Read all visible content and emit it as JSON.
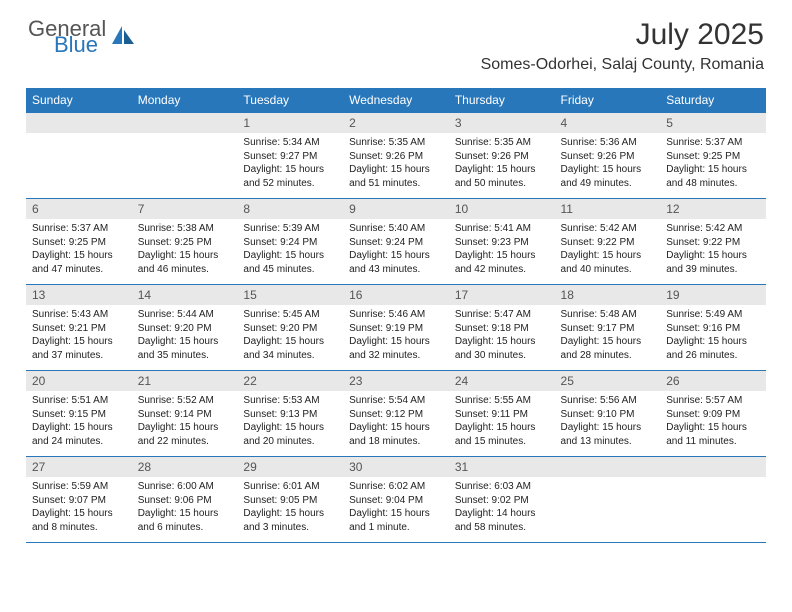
{
  "logo": {
    "text1": "General",
    "text2": "Blue"
  },
  "title": "July 2025",
  "location": "Somes-Odorhei, Salaj County, Romania",
  "colors": {
    "header_bg": "#2877bb",
    "date_bg": "#e8e8e8",
    "border": "#2877bb",
    "text": "#222222"
  },
  "dayHeaders": [
    "Sunday",
    "Monday",
    "Tuesday",
    "Wednesday",
    "Thursday",
    "Friday",
    "Saturday"
  ],
  "weeks": [
    [
      {
        "date": "",
        "lines": []
      },
      {
        "date": "",
        "lines": []
      },
      {
        "date": "1",
        "lines": [
          "Sunrise: 5:34 AM",
          "Sunset: 9:27 PM",
          "Daylight: 15 hours",
          "and 52 minutes."
        ]
      },
      {
        "date": "2",
        "lines": [
          "Sunrise: 5:35 AM",
          "Sunset: 9:26 PM",
          "Daylight: 15 hours",
          "and 51 minutes."
        ]
      },
      {
        "date": "3",
        "lines": [
          "Sunrise: 5:35 AM",
          "Sunset: 9:26 PM",
          "Daylight: 15 hours",
          "and 50 minutes."
        ]
      },
      {
        "date": "4",
        "lines": [
          "Sunrise: 5:36 AM",
          "Sunset: 9:26 PM",
          "Daylight: 15 hours",
          "and 49 minutes."
        ]
      },
      {
        "date": "5",
        "lines": [
          "Sunrise: 5:37 AM",
          "Sunset: 9:25 PM",
          "Daylight: 15 hours",
          "and 48 minutes."
        ]
      }
    ],
    [
      {
        "date": "6",
        "lines": [
          "Sunrise: 5:37 AM",
          "Sunset: 9:25 PM",
          "Daylight: 15 hours",
          "and 47 minutes."
        ]
      },
      {
        "date": "7",
        "lines": [
          "Sunrise: 5:38 AM",
          "Sunset: 9:25 PM",
          "Daylight: 15 hours",
          "and 46 minutes."
        ]
      },
      {
        "date": "8",
        "lines": [
          "Sunrise: 5:39 AM",
          "Sunset: 9:24 PM",
          "Daylight: 15 hours",
          "and 45 minutes."
        ]
      },
      {
        "date": "9",
        "lines": [
          "Sunrise: 5:40 AM",
          "Sunset: 9:24 PM",
          "Daylight: 15 hours",
          "and 43 minutes."
        ]
      },
      {
        "date": "10",
        "lines": [
          "Sunrise: 5:41 AM",
          "Sunset: 9:23 PM",
          "Daylight: 15 hours",
          "and 42 minutes."
        ]
      },
      {
        "date": "11",
        "lines": [
          "Sunrise: 5:42 AM",
          "Sunset: 9:22 PM",
          "Daylight: 15 hours",
          "and 40 minutes."
        ]
      },
      {
        "date": "12",
        "lines": [
          "Sunrise: 5:42 AM",
          "Sunset: 9:22 PM",
          "Daylight: 15 hours",
          "and 39 minutes."
        ]
      }
    ],
    [
      {
        "date": "13",
        "lines": [
          "Sunrise: 5:43 AM",
          "Sunset: 9:21 PM",
          "Daylight: 15 hours",
          "and 37 minutes."
        ]
      },
      {
        "date": "14",
        "lines": [
          "Sunrise: 5:44 AM",
          "Sunset: 9:20 PM",
          "Daylight: 15 hours",
          "and 35 minutes."
        ]
      },
      {
        "date": "15",
        "lines": [
          "Sunrise: 5:45 AM",
          "Sunset: 9:20 PM",
          "Daylight: 15 hours",
          "and 34 minutes."
        ]
      },
      {
        "date": "16",
        "lines": [
          "Sunrise: 5:46 AM",
          "Sunset: 9:19 PM",
          "Daylight: 15 hours",
          "and 32 minutes."
        ]
      },
      {
        "date": "17",
        "lines": [
          "Sunrise: 5:47 AM",
          "Sunset: 9:18 PM",
          "Daylight: 15 hours",
          "and 30 minutes."
        ]
      },
      {
        "date": "18",
        "lines": [
          "Sunrise: 5:48 AM",
          "Sunset: 9:17 PM",
          "Daylight: 15 hours",
          "and 28 minutes."
        ]
      },
      {
        "date": "19",
        "lines": [
          "Sunrise: 5:49 AM",
          "Sunset: 9:16 PM",
          "Daylight: 15 hours",
          "and 26 minutes."
        ]
      }
    ],
    [
      {
        "date": "20",
        "lines": [
          "Sunrise: 5:51 AM",
          "Sunset: 9:15 PM",
          "Daylight: 15 hours",
          "and 24 minutes."
        ]
      },
      {
        "date": "21",
        "lines": [
          "Sunrise: 5:52 AM",
          "Sunset: 9:14 PM",
          "Daylight: 15 hours",
          "and 22 minutes."
        ]
      },
      {
        "date": "22",
        "lines": [
          "Sunrise: 5:53 AM",
          "Sunset: 9:13 PM",
          "Daylight: 15 hours",
          "and 20 minutes."
        ]
      },
      {
        "date": "23",
        "lines": [
          "Sunrise: 5:54 AM",
          "Sunset: 9:12 PM",
          "Daylight: 15 hours",
          "and 18 minutes."
        ]
      },
      {
        "date": "24",
        "lines": [
          "Sunrise: 5:55 AM",
          "Sunset: 9:11 PM",
          "Daylight: 15 hours",
          "and 15 minutes."
        ]
      },
      {
        "date": "25",
        "lines": [
          "Sunrise: 5:56 AM",
          "Sunset: 9:10 PM",
          "Daylight: 15 hours",
          "and 13 minutes."
        ]
      },
      {
        "date": "26",
        "lines": [
          "Sunrise: 5:57 AM",
          "Sunset: 9:09 PM",
          "Daylight: 15 hours",
          "and 11 minutes."
        ]
      }
    ],
    [
      {
        "date": "27",
        "lines": [
          "Sunrise: 5:59 AM",
          "Sunset: 9:07 PM",
          "Daylight: 15 hours",
          "and 8 minutes."
        ]
      },
      {
        "date": "28",
        "lines": [
          "Sunrise: 6:00 AM",
          "Sunset: 9:06 PM",
          "Daylight: 15 hours",
          "and 6 minutes."
        ]
      },
      {
        "date": "29",
        "lines": [
          "Sunrise: 6:01 AM",
          "Sunset: 9:05 PM",
          "Daylight: 15 hours",
          "and 3 minutes."
        ]
      },
      {
        "date": "30",
        "lines": [
          "Sunrise: 6:02 AM",
          "Sunset: 9:04 PM",
          "Daylight: 15 hours",
          "and 1 minute."
        ]
      },
      {
        "date": "31",
        "lines": [
          "Sunrise: 6:03 AM",
          "Sunset: 9:02 PM",
          "Daylight: 14 hours",
          "and 58 minutes."
        ]
      },
      {
        "date": "",
        "lines": []
      },
      {
        "date": "",
        "lines": []
      }
    ]
  ]
}
